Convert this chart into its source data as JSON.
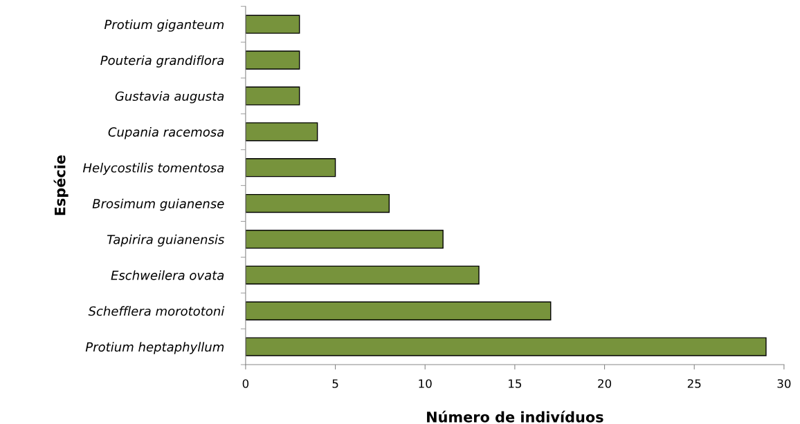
{
  "chart_data": {
    "type": "bar",
    "orientation": "horizontal",
    "xlabel": "Número de indivíduos",
    "ylabel": "Espécie",
    "categories": [
      "Protium giganteum",
      "Pouteria grandiflora",
      "Gustavia augusta",
      "Cupania racemosa",
      "Helycostilis tomentosa",
      "Brosimum guianense",
      "Tapirira guianensis",
      "Eschweilera ovata",
      "Schefflera morototoni",
      "Protium heptaphyllum"
    ],
    "values": [
      3,
      3,
      3,
      4,
      5,
      8,
      11,
      13,
      17,
      29
    ],
    "color": "#77933c",
    "xlim": [
      0,
      30
    ],
    "xticks": [
      0,
      5,
      10,
      15,
      20,
      25,
      30
    ],
    "grid": false,
    "legend": false
  }
}
